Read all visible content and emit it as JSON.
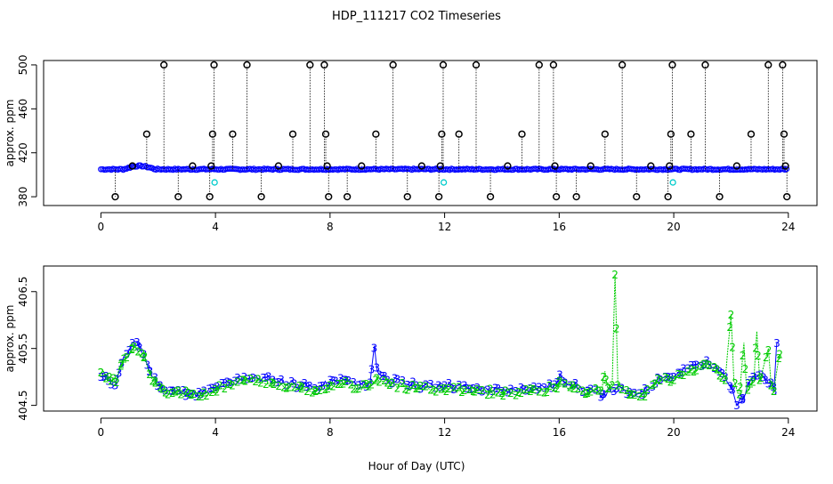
{
  "title": "HDP_111217  CO2 Timeseries",
  "xlabel": "Hour of Day (UTC)",
  "colors": {
    "blue": "#0000ff",
    "green": "#00cc00",
    "cyan": "#00cccc",
    "black": "#000000"
  },
  "chart_data": [
    {
      "type": "scatter",
      "ylabel": "approx. ppm",
      "xlim": [
        -2,
        25
      ],
      "ylim": [
        372,
        504
      ],
      "xticks": [
        0,
        4,
        8,
        12,
        16,
        20,
        24
      ],
      "xtick_labels": [
        "0",
        "4",
        "8",
        "12",
        "16",
        "20",
        "24"
      ],
      "yticks": [
        380,
        420,
        460,
        500
      ],
      "ytick_labels": [
        "380",
        "420",
        "460",
        "500"
      ],
      "baseline_ppm": 405,
      "spikes": [
        {
          "x": 0.5,
          "y": 380
        },
        {
          "x": 1.1,
          "y": 408
        },
        {
          "x": 1.6,
          "y": 437
        },
        {
          "x": 2.2,
          "y": 500
        },
        {
          "x": 2.7,
          "y": 380
        },
        {
          "x": 3.2,
          "y": 408
        },
        {
          "x": 3.8,
          "y": 380
        },
        {
          "x": 3.85,
          "y": 408
        },
        {
          "x": 3.9,
          "y": 437
        },
        {
          "x": 3.95,
          "y": 500
        },
        {
          "x": 4.6,
          "y": 437
        },
        {
          "x": 5.1,
          "y": 500
        },
        {
          "x": 5.6,
          "y": 380
        },
        {
          "x": 6.2,
          "y": 408
        },
        {
          "x": 6.7,
          "y": 437
        },
        {
          "x": 7.3,
          "y": 500
        },
        {
          "x": 7.8,
          "y": 500
        },
        {
          "x": 7.85,
          "y": 437
        },
        {
          "x": 7.9,
          "y": 408
        },
        {
          "x": 7.95,
          "y": 380
        },
        {
          "x": 8.6,
          "y": 380
        },
        {
          "x": 9.1,
          "y": 408
        },
        {
          "x": 9.6,
          "y": 437
        },
        {
          "x": 10.2,
          "y": 500
        },
        {
          "x": 10.7,
          "y": 380
        },
        {
          "x": 11.2,
          "y": 408
        },
        {
          "x": 11.8,
          "y": 380
        },
        {
          "x": 11.85,
          "y": 408
        },
        {
          "x": 11.9,
          "y": 437
        },
        {
          "x": 11.95,
          "y": 500
        },
        {
          "x": 12.5,
          "y": 437
        },
        {
          "x": 13.1,
          "y": 500
        },
        {
          "x": 13.6,
          "y": 380
        },
        {
          "x": 14.2,
          "y": 408
        },
        {
          "x": 14.7,
          "y": 437
        },
        {
          "x": 15.3,
          "y": 500
        },
        {
          "x": 15.8,
          "y": 500
        },
        {
          "x": 15.85,
          "y": 408
        },
        {
          "x": 15.9,
          "y": 380
        },
        {
          "x": 16.6,
          "y": 380
        },
        {
          "x": 17.1,
          "y": 408
        },
        {
          "x": 17.6,
          "y": 437
        },
        {
          "x": 18.2,
          "y": 500
        },
        {
          "x": 18.7,
          "y": 380
        },
        {
          "x": 19.2,
          "y": 408
        },
        {
          "x": 19.8,
          "y": 380
        },
        {
          "x": 19.85,
          "y": 408
        },
        {
          "x": 19.9,
          "y": 437
        },
        {
          "x": 19.95,
          "y": 500
        },
        {
          "x": 20.6,
          "y": 437
        },
        {
          "x": 21.1,
          "y": 500
        },
        {
          "x": 21.6,
          "y": 380
        },
        {
          "x": 22.2,
          "y": 408
        },
        {
          "x": 22.7,
          "y": 437
        },
        {
          "x": 23.3,
          "y": 500
        },
        {
          "x": 23.8,
          "y": 500
        },
        {
          "x": 23.85,
          "y": 437
        },
        {
          "x": 23.9,
          "y": 408
        },
        {
          "x": 23.95,
          "y": 380
        }
      ],
      "cyan_points": [
        {
          "x": 3.97,
          "y": 393
        },
        {
          "x": 11.97,
          "y": 393
        },
        {
          "x": 19.97,
          "y": 393
        }
      ]
    },
    {
      "type": "line",
      "ylabel": "approx. ppm",
      "xlim": [
        -2,
        25
      ],
      "ylim": [
        404.4,
        406.95
      ],
      "xticks": [
        0,
        4,
        8,
        12,
        16,
        20,
        24
      ],
      "xtick_labels": [
        "0",
        "4",
        "8",
        "12",
        "16",
        "20",
        "24"
      ],
      "yticks": [
        404.5,
        405.5,
        406.5
      ],
      "ytick_labels": [
        "404.5",
        "405.5",
        "406.5"
      ],
      "series": [
        {
          "name": "3",
          "label": "3",
          "color": "#0000ff",
          "keypoints": [
            [
              0,
              405.0
            ],
            [
              0.3,
              404.95
            ],
            [
              0.5,
              404.85
            ],
            [
              0.7,
              405.25
            ],
            [
              0.9,
              405.4
            ],
            [
              1.1,
              405.6
            ],
            [
              1.3,
              405.55
            ],
            [
              1.5,
              405.4
            ],
            [
              1.7,
              405.1
            ],
            [
              1.9,
              404.95
            ],
            [
              2.1,
              404.8
            ],
            [
              2.5,
              404.75
            ],
            [
              3.0,
              404.72
            ],
            [
              3.5,
              404.7
            ],
            [
              4.0,
              404.8
            ],
            [
              4.5,
              404.9
            ],
            [
              5.0,
              405.0
            ],
            [
              6.0,
              404.95
            ],
            [
              7.0,
              404.85
            ],
            [
              7.5,
              404.8
            ],
            [
              8.0,
              404.9
            ],
            [
              8.5,
              404.95
            ],
            [
              9.0,
              404.85
            ],
            [
              9.4,
              404.9
            ],
            [
              9.55,
              405.55
            ],
            [
              9.65,
              405.1
            ],
            [
              10.0,
              404.95
            ],
            [
              11.0,
              404.85
            ],
            [
              12.0,
              404.85
            ],
            [
              13.0,
              404.8
            ],
            [
              14.0,
              404.75
            ],
            [
              15.0,
              404.8
            ],
            [
              15.9,
              404.85
            ],
            [
              16.0,
              405.0
            ],
            [
              16.5,
              404.85
            ],
            [
              17.0,
              404.75
            ],
            [
              17.5,
              404.7
            ],
            [
              18.0,
              404.8
            ],
            [
              18.5,
              404.7
            ],
            [
              19.0,
              404.75
            ],
            [
              19.5,
              405.0
            ],
            [
              20.0,
              405.0
            ],
            [
              20.5,
              405.15
            ],
            [
              21.0,
              405.25
            ],
            [
              21.5,
              405.2
            ],
            [
              21.8,
              405.0
            ],
            [
              22.0,
              404.8
            ],
            [
              22.2,
              404.5
            ],
            [
              22.4,
              404.6
            ],
            [
              22.6,
              404.85
            ],
            [
              22.8,
              405.0
            ],
            [
              23.0,
              405.05
            ],
            [
              23.2,
              404.95
            ],
            [
              23.4,
              404.9
            ],
            [
              23.5,
              404.75
            ],
            [
              23.6,
              405.6
            ]
          ]
        },
        {
          "name": "2",
          "label": "2",
          "color": "#00cc00",
          "keypoints": [
            [
              0,
              405.08
            ],
            [
              0.3,
              405.0
            ],
            [
              0.5,
              404.9
            ],
            [
              0.7,
              405.2
            ],
            [
              0.9,
              405.35
            ],
            [
              1.1,
              405.5
            ],
            [
              1.3,
              405.45
            ],
            [
              1.5,
              405.35
            ],
            [
              1.7,
              405.05
            ],
            [
              1.9,
              404.9
            ],
            [
              2.1,
              404.78
            ],
            [
              2.5,
              404.72
            ],
            [
              3.0,
              404.7
            ],
            [
              3.5,
              404.68
            ],
            [
              4.0,
              404.78
            ],
            [
              4.5,
              404.88
            ],
            [
              5.0,
              404.95
            ],
            [
              6.0,
              404.9
            ],
            [
              7.0,
              404.8
            ],
            [
              7.5,
              404.75
            ],
            [
              8.0,
              404.85
            ],
            [
              8.5,
              404.9
            ],
            [
              9.0,
              404.8
            ],
            [
              9.4,
              404.85
            ],
            [
              9.6,
              404.95
            ],
            [
              10.0,
              404.9
            ],
            [
              11.0,
              404.8
            ],
            [
              12.0,
              404.8
            ],
            [
              13.0,
              404.75
            ],
            [
              14.0,
              404.72
            ],
            [
              15.0,
              404.75
            ],
            [
              15.9,
              404.8
            ],
            [
              16.0,
              404.9
            ],
            [
              16.5,
              404.8
            ],
            [
              17.0,
              404.72
            ],
            [
              17.5,
              404.8
            ],
            [
              17.6,
              405.1
            ],
            [
              17.7,
              404.8
            ],
            [
              17.85,
              404.85
            ],
            [
              17.95,
              406.8
            ],
            [
              18.05,
              404.85
            ],
            [
              18.5,
              404.7
            ],
            [
              19.0,
              404.72
            ],
            [
              19.5,
              404.95
            ],
            [
              20.0,
              404.95
            ],
            [
              20.5,
              405.1
            ],
            [
              21.0,
              405.2
            ],
            [
              21.5,
              405.1
            ],
            [
              21.8,
              404.95
            ],
            [
              22.0,
              406.1
            ],
            [
              22.1,
              404.9
            ],
            [
              22.3,
              404.7
            ],
            [
              22.45,
              405.6
            ],
            [
              22.55,
              404.75
            ],
            [
              22.8,
              404.95
            ],
            [
              22.9,
              405.8
            ],
            [
              23.0,
              404.95
            ],
            [
              23.3,
              405.5
            ],
            [
              23.4,
              404.85
            ],
            [
              23.5,
              404.75
            ],
            [
              23.7,
              405.4
            ]
          ]
        }
      ]
    }
  ]
}
